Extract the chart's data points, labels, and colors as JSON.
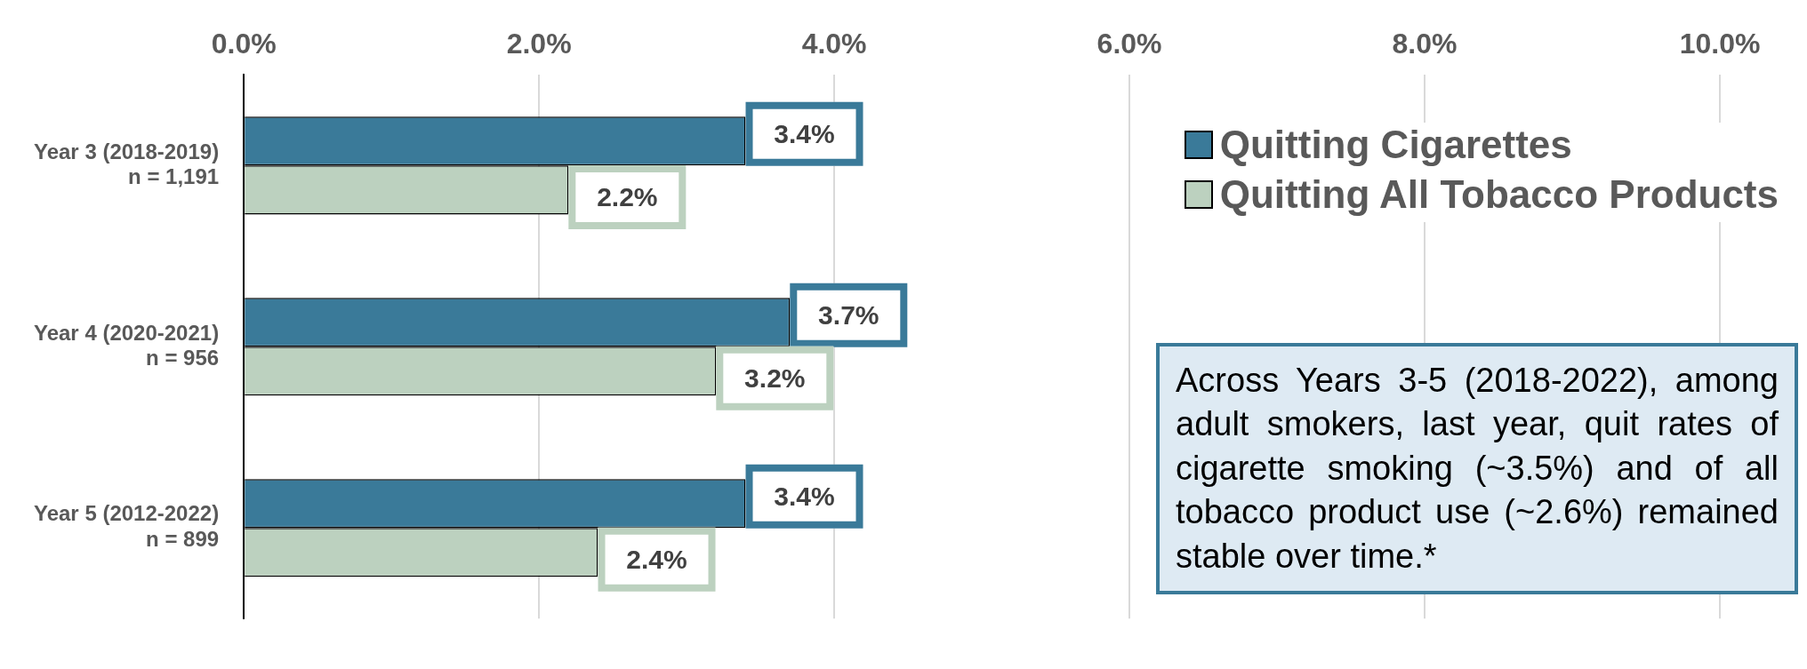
{
  "chart_data": {
    "type": "bar",
    "orientation": "horizontal",
    "categories": [
      "Year 3 (2018-2019)\nn = 1,191",
      "Year 4 (2020-2021)\nn = 956",
      "Year 5 (2012-2022)\nn = 899"
    ],
    "series": [
      {
        "name": "Quitting Cigarettes",
        "color": "#3a7a99",
        "values": [
          3.4,
          3.7,
          3.4
        ],
        "value_labels": [
          "3.4%",
          "3.7%",
          "3.4%"
        ]
      },
      {
        "name": "Quitting All Tobacco Products",
        "color": "#bcd1bf",
        "values": [
          2.2,
          3.2,
          2.4
        ],
        "value_labels": [
          "2.2%",
          "3.2%",
          "2.4%"
        ]
      }
    ],
    "xlim": [
      0,
      10
    ],
    "xticks": [
      {
        "value": 0,
        "label": "0.0%"
      },
      {
        "value": 2,
        "label": "2.0%"
      },
      {
        "value": 4,
        "label": "4.0%"
      },
      {
        "value": 6,
        "label": "6.0%"
      },
      {
        "value": 8,
        "label": "8.0%"
      },
      {
        "value": 10,
        "label": "10.0%"
      }
    ],
    "grid": "x",
    "legend": "top right",
    "annotations": [
      "Across Years 3-5 (2018-2022), among adult smokers, last year, quit rates of cigarette smoking (~3.5%) and of all tobacco product use (~2.6%) remained stable over time.*"
    ]
  }
}
